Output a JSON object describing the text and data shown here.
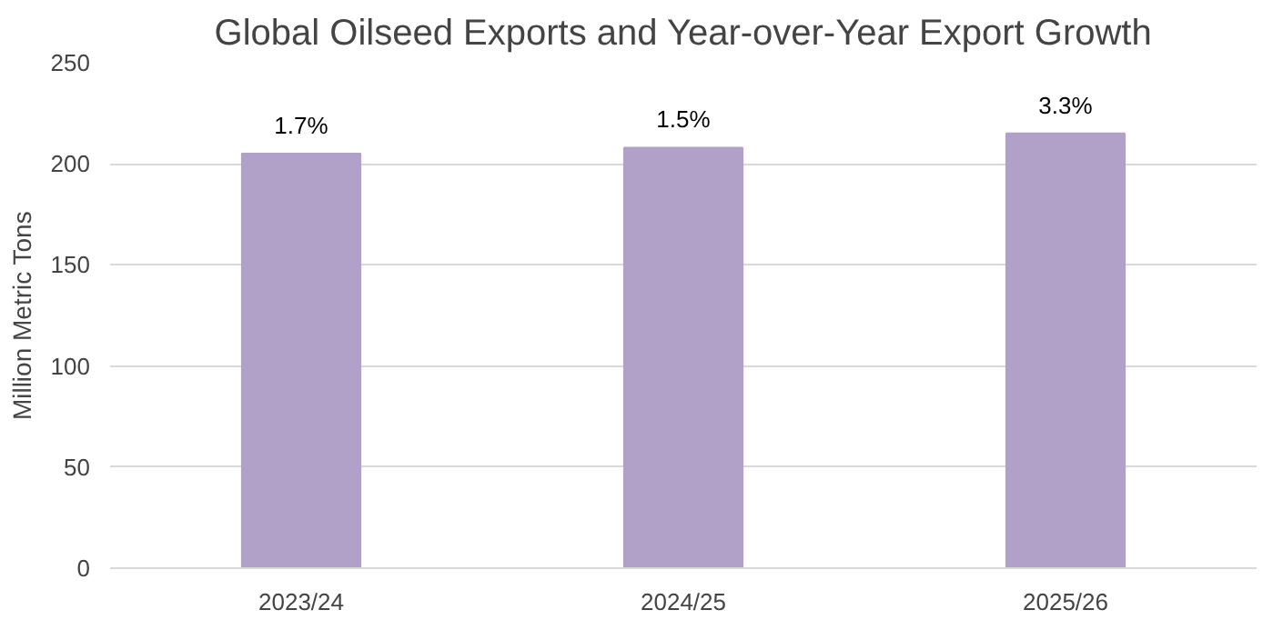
{
  "chart_data": {
    "type": "bar",
    "title": "Global Oilseed Exports and Year-over-Year Export Growth",
    "ylabel": "Million Metric Tons",
    "categories": [
      "2023/24",
      "2024/25",
      "2025/26"
    ],
    "values": [
      205,
      208,
      215
    ],
    "annotations": [
      {
        "text": "1.7%",
        "x": "2023/24",
        "y": 205
      },
      {
        "text": "1.5%",
        "x": "2024/25",
        "y": 208
      },
      {
        "text": "3.3%",
        "x": "2025/26",
        "y": 215
      }
    ],
    "color": "#b1a0c7",
    "ylim": [
      0,
      250
    ],
    "yticks": [
      0,
      50,
      100,
      150,
      200,
      250
    ],
    "grid": "y"
  }
}
